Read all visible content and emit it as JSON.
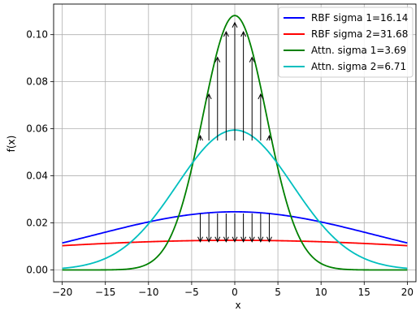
{
  "chart_data": {
    "type": "line",
    "title": "",
    "xlabel": "x",
    "ylabel": "f(x)",
    "xlim": [
      -21,
      21
    ],
    "ylim": [
      -0.005,
      0.113
    ],
    "x_ticks": [
      -20,
      -15,
      -10,
      -5,
      0,
      5,
      10,
      15,
      20
    ],
    "x_tick_labels": [
      "−20",
      "−15",
      "−10",
      "−5",
      "0",
      "5",
      "10",
      "15",
      "20"
    ],
    "y_ticks": [
      0.0,
      0.02,
      0.04,
      0.06,
      0.08,
      0.1
    ],
    "y_tick_labels": [
      "0.00",
      "0.02",
      "0.04",
      "0.06",
      "0.08",
      "0.10"
    ],
    "grid": true,
    "legend_position": "top-right",
    "x_range": [
      -20,
      20
    ],
    "series": [
      {
        "name": "RBF sigma 1=16.14",
        "sigma": 16.14,
        "color": "#0000ff"
      },
      {
        "name": "RBF sigma 2=31.68",
        "sigma": 31.68,
        "color": "#ff0000"
      },
      {
        "name": "Attn. sigma 1=3.69",
        "sigma": 3.69,
        "color": "#008000"
      },
      {
        "name": "Attn. sigma 2=6.71",
        "sigma": 6.71,
        "color": "#00bfbf"
      }
    ],
    "arrows": {
      "color": "#000000",
      "up": {
        "x": [
          -4,
          -3,
          -2,
          -1,
          0,
          1,
          2,
          3,
          4
        ],
        "from_y": 0.055,
        "to": "Attn. sigma 1=3.69"
      },
      "down": {
        "x": [
          -4,
          -3,
          -2,
          -1,
          0,
          1,
          2,
          3,
          4
        ],
        "from_y": 0.024,
        "to_y": 0.012
      }
    }
  }
}
